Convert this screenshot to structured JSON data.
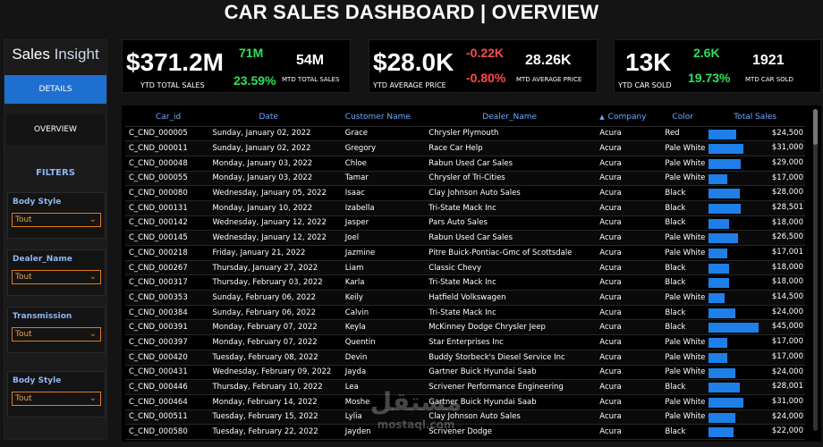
{
  "header": {
    "title": "CAR SALES DASHBOARD | OVERVIEW"
  },
  "sidebar": {
    "logo_primary": "Sales",
    "logo_secondary": "Insight",
    "nav": {
      "details": "DETAILS",
      "overview": "OVERVIEW"
    },
    "filters_title": "FILTERS",
    "filters": [
      {
        "label": "Body Style",
        "value": "Tout"
      },
      {
        "label": "Dealer_Name",
        "value": "Tout"
      },
      {
        "label": "Transmission",
        "value": "Tout"
      },
      {
        "label": "Body Style",
        "value": "Tout"
      }
    ]
  },
  "kpis": {
    "sales": {
      "ytd_value": "$371.2M",
      "ytd_label": "YTD TOTAL SALES",
      "mtd_delta": "71M",
      "yoy_pct": "23.59%",
      "mtd_value": "54M",
      "mtd_label": "MTD TOTAL SALES"
    },
    "price": {
      "ytd_value": "$28.0K",
      "ytd_label": "YTD AVERAGE PRICE",
      "mtd_delta": "-0.22K",
      "yoy_pct": "-0.80%",
      "mtd_value": "28.26K",
      "mtd_label": "MTD AVERAGE PRICE"
    },
    "cars": {
      "ytd_value": "13K",
      "ytd_label": "YTD CAR SOLD",
      "mtd_delta": "2.6K",
      "yoy_pct": "19.73%",
      "mtd_value": "1921",
      "mtd_label": "MTD CAR SOLD"
    }
  },
  "colors": {
    "accent": "#1f6fd1",
    "positive": "#2ee05a",
    "negative": "#ff4a4a",
    "filter_border": "#e07a1f",
    "bar": "#1e7fe8"
  },
  "table": {
    "columns": [
      "Car_id",
      "Date",
      "Customer Name",
      "Dealer_Name",
      "Company",
      "Color",
      "Total Sales"
    ],
    "max_sales": 45000,
    "rows": [
      {
        "car_id": "C_CND_000005",
        "date": "Sunday, January 02, 2022",
        "customer": "Grace",
        "dealer": "Chrysler Plymouth",
        "company": "Acura",
        "color": "Red",
        "sales": 24500,
        "sales_label": "$24,500"
      },
      {
        "car_id": "C_CND_000011",
        "date": "Sunday, January 02, 2022",
        "customer": "Gregory",
        "dealer": "Race Car Help",
        "company": "Acura",
        "color": "Pale White",
        "sales": 31000,
        "sales_label": "$31,000"
      },
      {
        "car_id": "C_CND_000048",
        "date": "Monday, January 03, 2022",
        "customer": "Chloe",
        "dealer": "Rabun Used Car Sales",
        "company": "Acura",
        "color": "Pale White",
        "sales": 29000,
        "sales_label": "$29,000"
      },
      {
        "car_id": "C_CND_000055",
        "date": "Monday, January 03, 2022",
        "customer": "Tamar",
        "dealer": "Chrysler of Tri-Cities",
        "company": "Acura",
        "color": "Pale White",
        "sales": 17000,
        "sales_label": "$17,000"
      },
      {
        "car_id": "C_CND_000080",
        "date": "Wednesday, January 05, 2022",
        "customer": "Isaac",
        "dealer": "Clay Johnson Auto Sales",
        "company": "Acura",
        "color": "Black",
        "sales": 28000,
        "sales_label": "$28,000"
      },
      {
        "car_id": "C_CND_000131",
        "date": "Monday, January 10, 2022",
        "customer": "Izabella",
        "dealer": "Tri-State Mack Inc",
        "company": "Acura",
        "color": "Black",
        "sales": 28501,
        "sales_label": "$28,501"
      },
      {
        "car_id": "C_CND_000142",
        "date": "Wednesday, January 12, 2022",
        "customer": "Jasper",
        "dealer": "Pars Auto Sales",
        "company": "Acura",
        "color": "Black",
        "sales": 18000,
        "sales_label": "$18,000"
      },
      {
        "car_id": "C_CND_000145",
        "date": "Wednesday, January 12, 2022",
        "customer": "Joel",
        "dealer": "Rabun Used Car Sales",
        "company": "Acura",
        "color": "Pale White",
        "sales": 26500,
        "sales_label": "$26,500"
      },
      {
        "car_id": "C_CND_000218",
        "date": "Friday, January 21, 2022",
        "customer": "Jazmine",
        "dealer": "Pitre Buick-Pontiac-Gmc of Scottsdale",
        "company": "Acura",
        "color": "Pale White",
        "sales": 17001,
        "sales_label": "$17,001"
      },
      {
        "car_id": "C_CND_000267",
        "date": "Thursday, January 27, 2022",
        "customer": "Liam",
        "dealer": "Classic Chevy",
        "company": "Acura",
        "color": "Black",
        "sales": 18000,
        "sales_label": "$18,000"
      },
      {
        "car_id": "C_CND_000317",
        "date": "Thursday, February 03, 2022",
        "customer": "Karla",
        "dealer": "Tri-State Mack Inc",
        "company": "Acura",
        "color": "Black",
        "sales": 18000,
        "sales_label": "$18,000"
      },
      {
        "car_id": "C_CND_000353",
        "date": "Sunday, February 06, 2022",
        "customer": "Keily",
        "dealer": "Hatfield Volkswagen",
        "company": "Acura",
        "color": "Pale White",
        "sales": 14500,
        "sales_label": "$14,500"
      },
      {
        "car_id": "C_CND_000384",
        "date": "Sunday, February 06, 2022",
        "customer": "Calvin",
        "dealer": "Tri-State Mack Inc",
        "company": "Acura",
        "color": "Black",
        "sales": 24000,
        "sales_label": "$24,000"
      },
      {
        "car_id": "C_CND_000391",
        "date": "Monday, February 07, 2022",
        "customer": "Keyla",
        "dealer": "McKinney Dodge Chrysler Jeep",
        "company": "Acura",
        "color": "Black",
        "sales": 45000,
        "sales_label": "$45,000"
      },
      {
        "car_id": "C_CND_000397",
        "date": "Monday, February 07, 2022",
        "customer": "Quentin",
        "dealer": "Star Enterprises Inc",
        "company": "Acura",
        "color": "Pale White",
        "sales": 17000,
        "sales_label": "$17,000"
      },
      {
        "car_id": "C_CND_000420",
        "date": "Tuesday, February 08, 2022",
        "customer": "Devin",
        "dealer": "Buddy Storbeck's Diesel Service Inc",
        "company": "Acura",
        "color": "Pale White",
        "sales": 17000,
        "sales_label": "$17,000"
      },
      {
        "car_id": "C_CND_000431",
        "date": "Wednesday, February 09, 2022",
        "customer": "Jayda",
        "dealer": "Gartner Buick Hyundai Saab",
        "company": "Acura",
        "color": "Pale White",
        "sales": 24000,
        "sales_label": "$24,000"
      },
      {
        "car_id": "C_CND_000446",
        "date": "Thursday, February 10, 2022",
        "customer": "Lea",
        "dealer": "Scrivener Performance Engineering",
        "company": "Acura",
        "color": "Black",
        "sales": 28001,
        "sales_label": "$28,001"
      },
      {
        "car_id": "C_CND_000464",
        "date": "Monday, February 14, 2022",
        "customer": "Moshe",
        "dealer": "Gartner Buick Hyundai Saab",
        "company": "Acura",
        "color": "Pale White",
        "sales": 31000,
        "sales_label": "$31,000"
      },
      {
        "car_id": "C_CND_000511",
        "date": "Tuesday, February 15, 2022",
        "customer": "Lylia",
        "dealer": "Clay Johnson Auto Sales",
        "company": "Acura",
        "color": "Pale White",
        "sales": 24000,
        "sales_label": "$24,000"
      },
      {
        "car_id": "C_CND_000580",
        "date": "Tuesday, February 22, 2022",
        "customer": "Jayden",
        "dealer": "Scrivener Dodge",
        "company": "Acura",
        "color": "Black",
        "sales": 22000,
        "sales_label": "$22,000"
      }
    ]
  },
  "watermark": {
    "line1": "مستقل",
    "line2": "mostaql.com"
  }
}
